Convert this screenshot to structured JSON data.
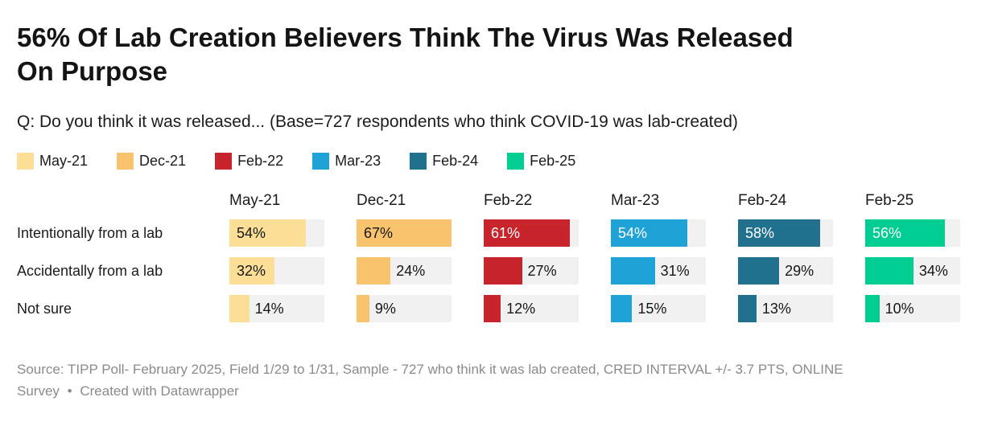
{
  "header": {
    "title": "56% Of Lab Creation Believers Think The Virus Was Released On Purpose",
    "subtitle": "Q: Do you think it was released... (Base=727 respondents who think COVID-19 was lab-created)"
  },
  "legend": {
    "position": "top",
    "items": [
      {
        "label": "May-21",
        "color": "#FBDF96"
      },
      {
        "label": "Dec-21",
        "color": "#F9C36D"
      },
      {
        "label": "Feb-22",
        "color": "#C8242C"
      },
      {
        "label": "Mar-23",
        "color": "#1FA3D6"
      },
      {
        "label": "Feb-24",
        "color": "#21708E"
      },
      {
        "label": "Feb-25",
        "color": "#00CD92"
      }
    ]
  },
  "chart_data": {
    "type": "bar",
    "orientation": "horizontal",
    "title": "56% Of Lab Creation Believers Think The Virus Was Released On Purpose",
    "grid": false,
    "legend_position": "top",
    "scale_max": 67,
    "track_color": "#F1F1F1",
    "categories": [
      "May-21",
      "Dec-21",
      "Feb-22",
      "Mar-23",
      "Feb-24",
      "Feb-25"
    ],
    "colors": [
      "#FBDF96",
      "#F9C36D",
      "#C8242C",
      "#1FA3D6",
      "#21708E",
      "#00CD92"
    ],
    "rows": [
      {
        "label": "Intentionally from a lab",
        "cells": [
          {
            "value": 54,
            "label": "54%",
            "label_inside": true,
            "label_white": false
          },
          {
            "value": 67,
            "label": "67%",
            "label_inside": true,
            "label_white": false
          },
          {
            "value": 61,
            "label": "61%",
            "label_inside": true,
            "label_white": true
          },
          {
            "value": 54,
            "label": "54%",
            "label_inside": true,
            "label_white": true
          },
          {
            "value": 58,
            "label": "58%",
            "label_inside": true,
            "label_white": true
          },
          {
            "value": 56,
            "label": "56%",
            "label_inside": true,
            "label_white": true
          }
        ]
      },
      {
        "label": "Accidentally from a lab",
        "cells": [
          {
            "value": 32,
            "label": "32%",
            "label_inside": true,
            "label_white": false
          },
          {
            "value": 24,
            "label": "24%",
            "label_inside": false,
            "label_white": false
          },
          {
            "value": 27,
            "label": "27%",
            "label_inside": false,
            "label_white": false
          },
          {
            "value": 31,
            "label": "31%",
            "label_inside": false,
            "label_white": false
          },
          {
            "value": 29,
            "label": "29%",
            "label_inside": false,
            "label_white": false
          },
          {
            "value": 34,
            "label": "34%",
            "label_inside": false,
            "label_white": false
          }
        ]
      },
      {
        "label": "Not sure",
        "cells": [
          {
            "value": 14,
            "label": "14%",
            "label_inside": false,
            "label_white": false
          },
          {
            "value": 9,
            "label": "9%",
            "label_inside": false,
            "label_white": false
          },
          {
            "value": 12,
            "label": "12%",
            "label_inside": false,
            "label_white": false
          },
          {
            "value": 15,
            "label": "15%",
            "label_inside": false,
            "label_white": false
          },
          {
            "value": 13,
            "label": "13%",
            "label_inside": false,
            "label_white": false
          },
          {
            "value": 10,
            "label": "10%",
            "label_inside": false,
            "label_white": false
          }
        ]
      }
    ]
  },
  "footer": {
    "source": "Source: TIPP Poll- February 2025, Field 1/29 to 1/31, Sample - 727 who think it was lab created, CRED INTERVAL +/- 3.7 PTS, ONLINE Survey",
    "separator": "•",
    "attribution": "Created with Datawrapper"
  }
}
